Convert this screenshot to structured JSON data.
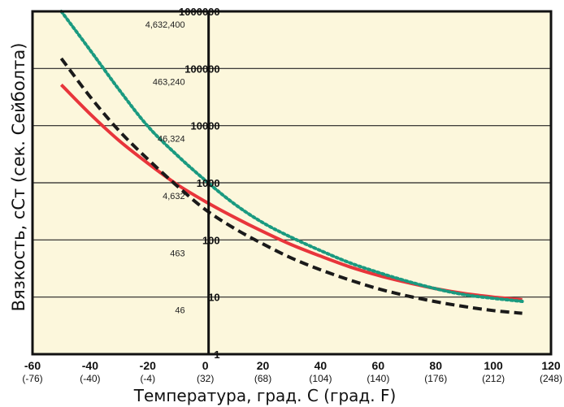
{
  "chart_data": {
    "type": "line",
    "ylabel": "Вязкость, сСт (сек. Сейболта)",
    "xlabel": "Температура, град. С (град. F)",
    "x_ticks": [
      {
        "c": "-60",
        "f": "(-76)"
      },
      {
        "c": "-40",
        "f": "(-40)"
      },
      {
        "c": "-20",
        "f": "(-4)"
      },
      {
        "c": "0",
        "f": "(32)"
      },
      {
        "c": "20",
        "f": "(68)"
      },
      {
        "c": "40",
        "f": "(104)"
      },
      {
        "c": "60",
        "f": "(140)"
      },
      {
        "c": "80",
        "f": "(176)"
      },
      {
        "c": "100",
        "f": "(212)"
      },
      {
        "c": "120",
        "f": "(248)"
      }
    ],
    "y_ticks": [
      {
        "value": 1000000,
        "cst": "1000000",
        "sus": "4,632,400"
      },
      {
        "value": 100000,
        "cst": "100000",
        "sus": "463,240"
      },
      {
        "value": 10000,
        "cst": "10000",
        "sus": "46,324"
      },
      {
        "value": 1000,
        "cst": "1000",
        "sus": "4,632"
      },
      {
        "value": 100,
        "cst": "100",
        "sus": "463"
      },
      {
        "value": 10,
        "cst": "10",
        "sus": "46"
      },
      {
        "value": 1,
        "cst": "1",
        "sus": ""
      }
    ],
    "xlim": [
      -60,
      120
    ],
    "ylim": [
      1,
      1000000
    ],
    "y_scale": "log",
    "grid": "horizontal",
    "legend": "none",
    "series": [
      {
        "color": "#e8353b",
        "style": "solid",
        "x": [
          -50,
          -40,
          -30,
          -20,
          -10,
          0,
          10,
          20,
          30,
          40,
          50,
          60,
          70,
          80,
          90,
          100,
          110
        ],
        "y": [
          52000,
          16000,
          5500,
          2200,
          950,
          470,
          250,
          140,
          82,
          52,
          34,
          24,
          18,
          14,
          11.5,
          10,
          9
        ]
      },
      {
        "color": "#1a1a1a",
        "style": "dashed",
        "x": [
          -50,
          -40,
          -30,
          -20,
          -10,
          0,
          10,
          20,
          30,
          40,
          50,
          60,
          70,
          80,
          90,
          100,
          110
        ],
        "y": [
          150000,
          32000,
          8200,
          2600,
          900,
          340,
          160,
          85,
          48,
          30,
          20,
          14,
          10.5,
          8.3,
          6.8,
          5.8,
          5.2
        ]
      },
      {
        "color": "#1a9a80",
        "style": "dotted",
        "x": [
          -50,
          -40,
          -30,
          -20,
          -10,
          0,
          10,
          20,
          30,
          40,
          50,
          60,
          70,
          80,
          90,
          100,
          110
        ],
        "y": [
          1000000,
          210000,
          43000,
          9800,
          3100,
          1100,
          430,
          200,
          110,
          65,
          40,
          27,
          19,
          14,
          11,
          9.5,
          8.4
        ]
      }
    ]
  }
}
